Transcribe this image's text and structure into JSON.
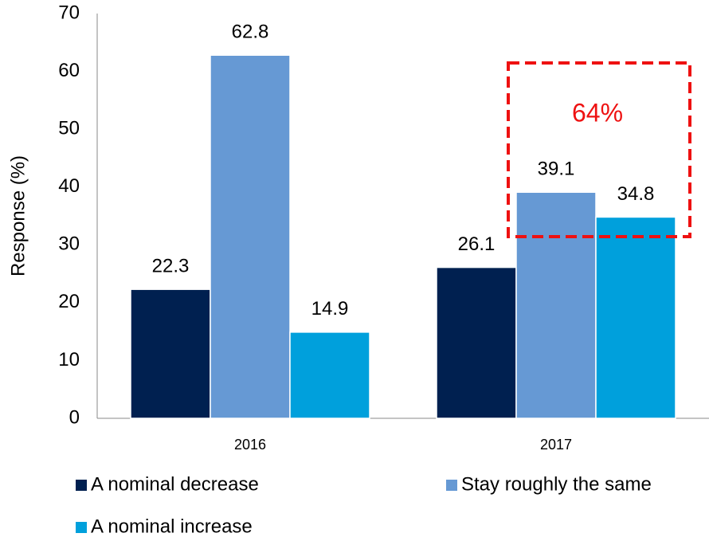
{
  "chart_data": {
    "type": "bar",
    "y_label": "Response (%)",
    "categories": [
      "2016",
      "2017"
    ],
    "series": [
      {
        "name": "A nominal decrease",
        "color": "#002050",
        "values": [
          22.3,
          26.1
        ]
      },
      {
        "name": "Stay roughly the same",
        "color": "#6699d4",
        "values": [
          62.8,
          39.1
        ]
      },
      {
        "name": "A nominal increase",
        "color": "#00a0dc",
        "values": [
          14.9,
          34.8
        ]
      }
    ],
    "ylim": [
      0,
      70
    ],
    "yticks": [
      0,
      10,
      20,
      30,
      40,
      50,
      60,
      70
    ],
    "grid": false,
    "annotation": "64%",
    "annotation_color": "#ee1111"
  }
}
